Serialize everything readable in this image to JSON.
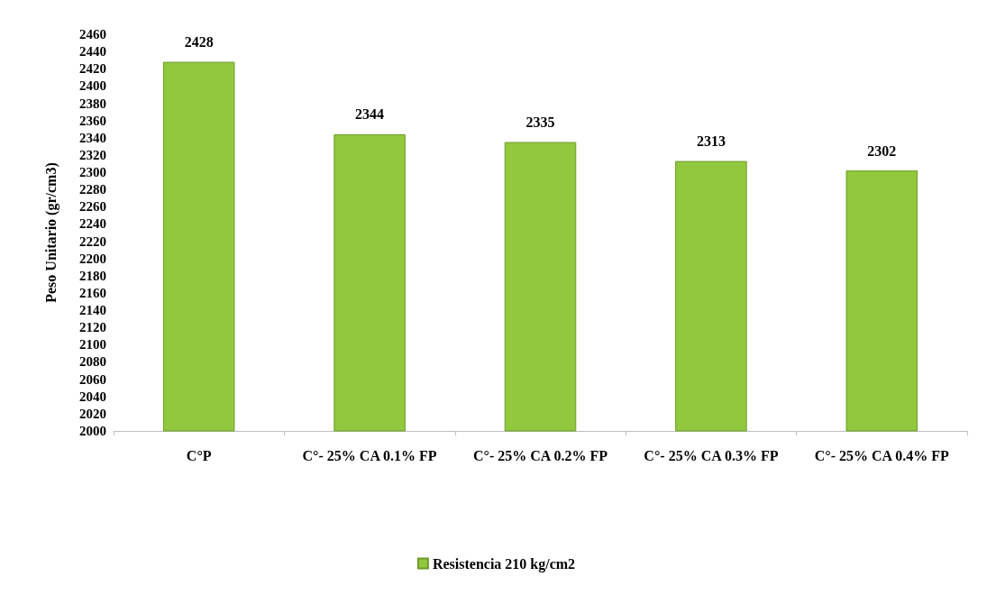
{
  "chart_data": {
    "type": "bar",
    "ylabel": "Peso Unitario (gr/cm3)",
    "categories": [
      "C°P",
      "C°- 25% CA 0.1% FP",
      "C°- 25% CA 0.2% FP",
      "C°- 25% CA 0.3% FP",
      "C°- 25% CA 0.4% FP"
    ],
    "series": [
      {
        "name": "Resistencia 210 kg/cm2",
        "color": "#92c83e",
        "values": [
          2428,
          2344,
          2335,
          2313,
          2302
        ]
      }
    ],
    "ylim": [
      2000,
      2460
    ],
    "yticks": [
      2000,
      2020,
      2040,
      2060,
      2080,
      2100,
      2120,
      2140,
      2160,
      2180,
      2200,
      2220,
      2240,
      2260,
      2280,
      2300,
      2320,
      2340,
      2360,
      2380,
      2400,
      2420,
      2440,
      2460
    ],
    "data_labels": true,
    "grid": false,
    "legend": "bottom"
  }
}
